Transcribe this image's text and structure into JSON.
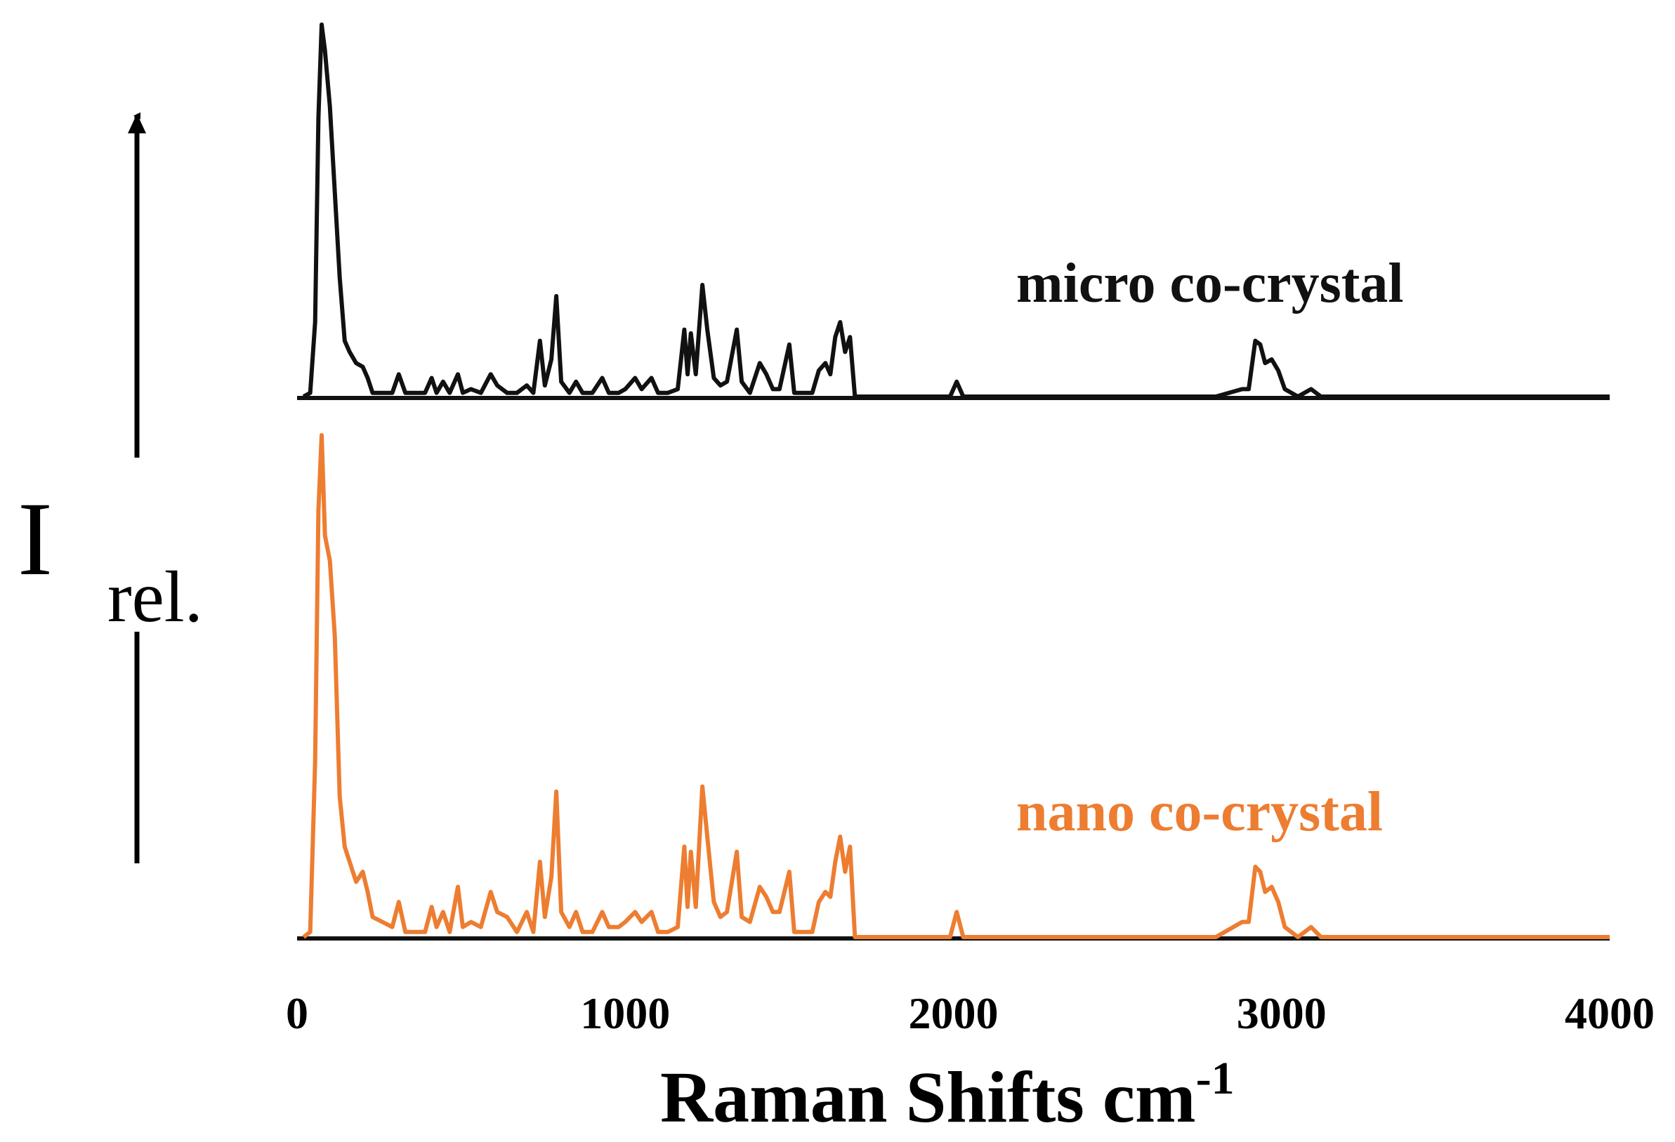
{
  "chart_data": {
    "type": "line",
    "xlabel": "Raman Shifts cm",
    "xlabel_superscript": "-1",
    "ylabel": "I",
    "ylabel_subscript": "rel.",
    "xlim": [
      0,
      4000
    ],
    "x_ticks": [
      0,
      1000,
      2000,
      3000,
      4000
    ],
    "grid": false,
    "series_offset_stacked": true,
    "series": [
      {
        "name": "micro co-crystal",
        "color": "#111111",
        "points": [
          [
            20,
            0.0
          ],
          [
            40,
            0.01
          ],
          [
            55,
            0.2
          ],
          [
            65,
            0.75
          ],
          [
            75,
            1.0
          ],
          [
            85,
            0.93
          ],
          [
            100,
            0.78
          ],
          [
            115,
            0.55
          ],
          [
            130,
            0.32
          ],
          [
            145,
            0.15
          ],
          [
            160,
            0.12
          ],
          [
            180,
            0.09
          ],
          [
            200,
            0.08
          ],
          [
            215,
            0.05
          ],
          [
            230,
            0.01
          ],
          [
            260,
            0.01
          ],
          [
            290,
            0.01
          ],
          [
            310,
            0.06
          ],
          [
            330,
            0.01
          ],
          [
            360,
            0.01
          ],
          [
            390,
            0.01
          ],
          [
            410,
            0.05
          ],
          [
            425,
            0.01
          ],
          [
            445,
            0.04
          ],
          [
            465,
            0.01
          ],
          [
            490,
            0.06
          ],
          [
            505,
            0.01
          ],
          [
            530,
            0.02
          ],
          [
            560,
            0.01
          ],
          [
            590,
            0.06
          ],
          [
            610,
            0.03
          ],
          [
            640,
            0.01
          ],
          [
            670,
            0.01
          ],
          [
            700,
            0.03
          ],
          [
            720,
            0.01
          ],
          [
            740,
            0.15
          ],
          [
            755,
            0.03
          ],
          [
            775,
            0.1
          ],
          [
            790,
            0.27
          ],
          [
            805,
            0.04
          ],
          [
            830,
            0.01
          ],
          [
            850,
            0.04
          ],
          [
            870,
            0.01
          ],
          [
            900,
            0.01
          ],
          [
            930,
            0.05
          ],
          [
            950,
            0.01
          ],
          [
            980,
            0.01
          ],
          [
            1000,
            0.02
          ],
          [
            1030,
            0.05
          ],
          [
            1050,
            0.02
          ],
          [
            1080,
            0.05
          ],
          [
            1100,
            0.01
          ],
          [
            1130,
            0.01
          ],
          [
            1160,
            0.02
          ],
          [
            1180,
            0.18
          ],
          [
            1190,
            0.06
          ],
          [
            1200,
            0.17
          ],
          [
            1215,
            0.06
          ],
          [
            1235,
            0.3
          ],
          [
            1250,
            0.18
          ],
          [
            1270,
            0.05
          ],
          [
            1290,
            0.03
          ],
          [
            1310,
            0.04
          ],
          [
            1340,
            0.18
          ],
          [
            1355,
            0.04
          ],
          [
            1380,
            0.01
          ],
          [
            1410,
            0.09
          ],
          [
            1430,
            0.06
          ],
          [
            1450,
            0.02
          ],
          [
            1470,
            0.02
          ],
          [
            1500,
            0.14
          ],
          [
            1515,
            0.01
          ],
          [
            1540,
            0.01
          ],
          [
            1570,
            0.01
          ],
          [
            1590,
            0.07
          ],
          [
            1610,
            0.09
          ],
          [
            1625,
            0.06
          ],
          [
            1640,
            0.16
          ],
          [
            1655,
            0.2
          ],
          [
            1670,
            0.12
          ],
          [
            1685,
            0.16
          ],
          [
            1700,
            0.0
          ],
          [
            1800,
            0.0
          ],
          [
            1900,
            0.0
          ],
          [
            1990,
            0.0
          ],
          [
            2010,
            0.04
          ],
          [
            2030,
            0.0
          ],
          [
            2200,
            0.0
          ],
          [
            2400,
            0.0
          ],
          [
            2600,
            0.0
          ],
          [
            2800,
            0.0
          ],
          [
            2880,
            0.02
          ],
          [
            2900,
            0.02
          ],
          [
            2920,
            0.15
          ],
          [
            2935,
            0.14
          ],
          [
            2950,
            0.09
          ],
          [
            2970,
            0.1
          ],
          [
            2990,
            0.07
          ],
          [
            3010,
            0.02
          ],
          [
            3050,
            0.0
          ],
          [
            3090,
            0.02
          ],
          [
            3120,
            0.0
          ],
          [
            3300,
            0.0
          ],
          [
            3500,
            0.0
          ],
          [
            3700,
            0.0
          ],
          [
            4000,
            0.0
          ]
        ]
      },
      {
        "name": "nano co-crystal",
        "color": "#ed7d31",
        "points": [
          [
            20,
            0.0
          ],
          [
            40,
            0.01
          ],
          [
            55,
            0.35
          ],
          [
            65,
            0.85
          ],
          [
            75,
            1.0
          ],
          [
            85,
            0.8
          ],
          [
            100,
            0.75
          ],
          [
            115,
            0.6
          ],
          [
            130,
            0.28
          ],
          [
            145,
            0.18
          ],
          [
            160,
            0.15
          ],
          [
            180,
            0.11
          ],
          [
            200,
            0.13
          ],
          [
            215,
            0.09
          ],
          [
            230,
            0.04
          ],
          [
            260,
            0.03
          ],
          [
            290,
            0.02
          ],
          [
            310,
            0.07
          ],
          [
            330,
            0.01
          ],
          [
            360,
            0.01
          ],
          [
            390,
            0.01
          ],
          [
            410,
            0.06
          ],
          [
            425,
            0.02
          ],
          [
            445,
            0.05
          ],
          [
            465,
            0.01
          ],
          [
            490,
            0.1
          ],
          [
            505,
            0.02
          ],
          [
            530,
            0.03
          ],
          [
            560,
            0.02
          ],
          [
            590,
            0.09
          ],
          [
            610,
            0.05
          ],
          [
            640,
            0.04
          ],
          [
            670,
            0.01
          ],
          [
            700,
            0.05
          ],
          [
            720,
            0.01
          ],
          [
            740,
            0.15
          ],
          [
            755,
            0.04
          ],
          [
            775,
            0.12
          ],
          [
            790,
            0.29
          ],
          [
            805,
            0.05
          ],
          [
            830,
            0.02
          ],
          [
            850,
            0.05
          ],
          [
            870,
            0.01
          ],
          [
            900,
            0.01
          ],
          [
            930,
            0.05
          ],
          [
            950,
            0.02
          ],
          [
            980,
            0.02
          ],
          [
            1000,
            0.03
          ],
          [
            1030,
            0.05
          ],
          [
            1050,
            0.03
          ],
          [
            1080,
            0.05
          ],
          [
            1100,
            0.01
          ],
          [
            1130,
            0.01
          ],
          [
            1160,
            0.02
          ],
          [
            1180,
            0.18
          ],
          [
            1190,
            0.06
          ],
          [
            1200,
            0.17
          ],
          [
            1215,
            0.06
          ],
          [
            1235,
            0.3
          ],
          [
            1250,
            0.2
          ],
          [
            1270,
            0.07
          ],
          [
            1290,
            0.04
          ],
          [
            1310,
            0.05
          ],
          [
            1340,
            0.17
          ],
          [
            1355,
            0.04
          ],
          [
            1380,
            0.03
          ],
          [
            1410,
            0.1
          ],
          [
            1430,
            0.08
          ],
          [
            1450,
            0.05
          ],
          [
            1470,
            0.05
          ],
          [
            1500,
            0.13
          ],
          [
            1515,
            0.01
          ],
          [
            1540,
            0.01
          ],
          [
            1570,
            0.01
          ],
          [
            1590,
            0.07
          ],
          [
            1610,
            0.09
          ],
          [
            1625,
            0.08
          ],
          [
            1640,
            0.15
          ],
          [
            1655,
            0.2
          ],
          [
            1670,
            0.13
          ],
          [
            1685,
            0.18
          ],
          [
            1700,
            0.0
          ],
          [
            1800,
            0.0
          ],
          [
            1900,
            0.0
          ],
          [
            1990,
            0.0
          ],
          [
            2010,
            0.05
          ],
          [
            2030,
            0.0
          ],
          [
            2200,
            0.0
          ],
          [
            2400,
            0.0
          ],
          [
            2600,
            0.0
          ],
          [
            2800,
            0.0
          ],
          [
            2880,
            0.03
          ],
          [
            2900,
            0.03
          ],
          [
            2920,
            0.14
          ],
          [
            2935,
            0.13
          ],
          [
            2950,
            0.09
          ],
          [
            2970,
            0.1
          ],
          [
            2990,
            0.07
          ],
          [
            3010,
            0.02
          ],
          [
            3050,
            0.0
          ],
          [
            3090,
            0.02
          ],
          [
            3120,
            0.0
          ],
          [
            3300,
            0.0
          ],
          [
            3500,
            0.0
          ],
          [
            3700,
            0.0
          ],
          [
            4000,
            0.0
          ]
        ]
      }
    ]
  }
}
